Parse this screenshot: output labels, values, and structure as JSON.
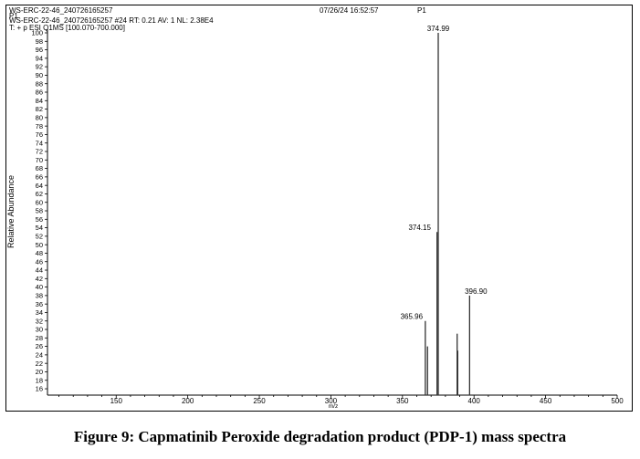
{
  "header": {
    "line1_left": "WS-ERC-22-46_240726165257",
    "line1_mid": "07/26/24 16:52:57",
    "line1_right": "P1",
    "line2": "P1",
    "line3": "WS-ERC-22-46_240726165257 #24   RT: 0.21   AV: 1   NL: 2.38E4",
    "line4": "T: + p ESI Q1MS [100.070-700.000]"
  },
  "caption": "Figure 9: Capmatinib Peroxide degradation product (PDP-1)  mass spectra",
  "chart_data": {
    "type": "bar",
    "title": "",
    "xlabel": "m/z",
    "ylabel": "Relative Abundance",
    "xlim": [
      102,
      500
    ],
    "ylim": [
      14.5,
      100
    ],
    "xticks": [
      150,
      200,
      250,
      300,
      350,
      400,
      450,
      500
    ],
    "yticks": [
      16,
      18,
      20,
      22,
      24,
      26,
      28,
      30,
      32,
      34,
      36,
      38,
      40,
      42,
      44,
      46,
      48,
      50,
      52,
      54,
      56,
      58,
      60,
      62,
      64,
      66,
      68,
      70,
      72,
      74,
      76,
      78,
      80,
      82,
      84,
      86,
      88,
      90,
      92,
      94,
      96,
      98,
      100
    ],
    "series": [
      {
        "x": [
          365.96,
          367.5,
          374.15,
          374.99,
          388.2,
          388.6,
          396.9
        ],
        "values": [
          32,
          26,
          53,
          100,
          29,
          25,
          38
        ]
      }
    ],
    "peak_labels": [
      "365.96",
      "374.15",
      "374.99",
      "396.90"
    ]
  }
}
